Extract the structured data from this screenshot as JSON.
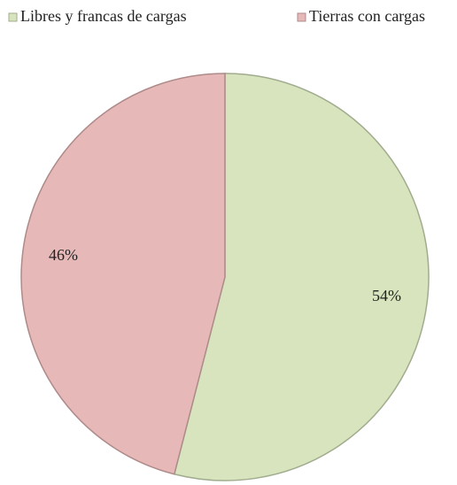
{
  "chart_data": {
    "type": "pie",
    "categories": [
      "Libres y francas de cargas",
      "Tierras con cargas"
    ],
    "values": [
      54,
      46
    ],
    "value_labels": [
      "54%",
      "46%"
    ],
    "colors": [
      "#d7e4bd",
      "#e6b9b8"
    ],
    "legend": "top"
  }
}
